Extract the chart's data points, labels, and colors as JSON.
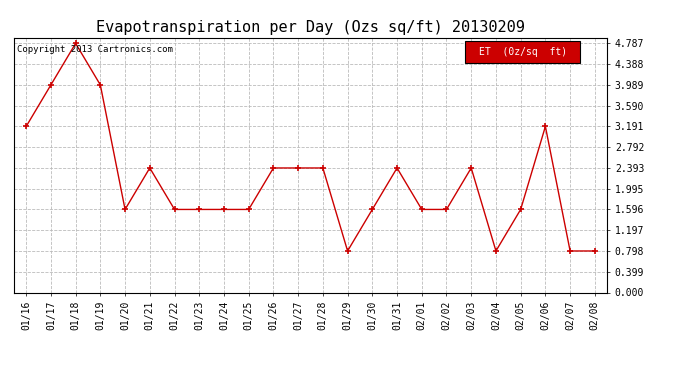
{
  "title": "Evapotranspiration per Day (Ozs sq/ft) 20130209",
  "copyright_text": "Copyright 2013 Cartronics.com",
  "legend_label": "ET  (0z/sq  ft)",
  "x_labels": [
    "01/16",
    "01/17",
    "01/18",
    "01/19",
    "01/20",
    "01/21",
    "01/22",
    "01/23",
    "01/24",
    "01/25",
    "01/26",
    "01/27",
    "01/28",
    "01/29",
    "01/30",
    "01/31",
    "02/01",
    "02/02",
    "02/03",
    "02/04",
    "02/05",
    "02/06",
    "02/07",
    "02/08"
  ],
  "y_values": [
    3.191,
    3.989,
    4.787,
    3.989,
    1.596,
    2.393,
    1.596,
    1.596,
    1.596,
    1.596,
    2.393,
    2.393,
    2.393,
    0.798,
    1.596,
    2.393,
    1.596,
    1.596,
    2.393,
    0.798,
    1.596,
    3.191,
    0.798,
    0.798
  ],
  "y_ticks": [
    0.0,
    0.399,
    0.798,
    1.197,
    1.596,
    1.995,
    2.393,
    2.792,
    3.191,
    3.59,
    3.989,
    4.388,
    4.787
  ],
  "ylim": [
    0.0,
    4.9
  ],
  "line_color": "#cc0000",
  "marker_color": "#cc0000",
  "legend_bg_color": "#cc0000",
  "legend_text_color": "#ffffff",
  "grid_color": "#bbbbbb",
  "bg_color": "#ffffff",
  "title_fontsize": 11,
  "tick_fontsize": 7,
  "copyright_fontsize": 6.5,
  "legend_fontsize": 7
}
